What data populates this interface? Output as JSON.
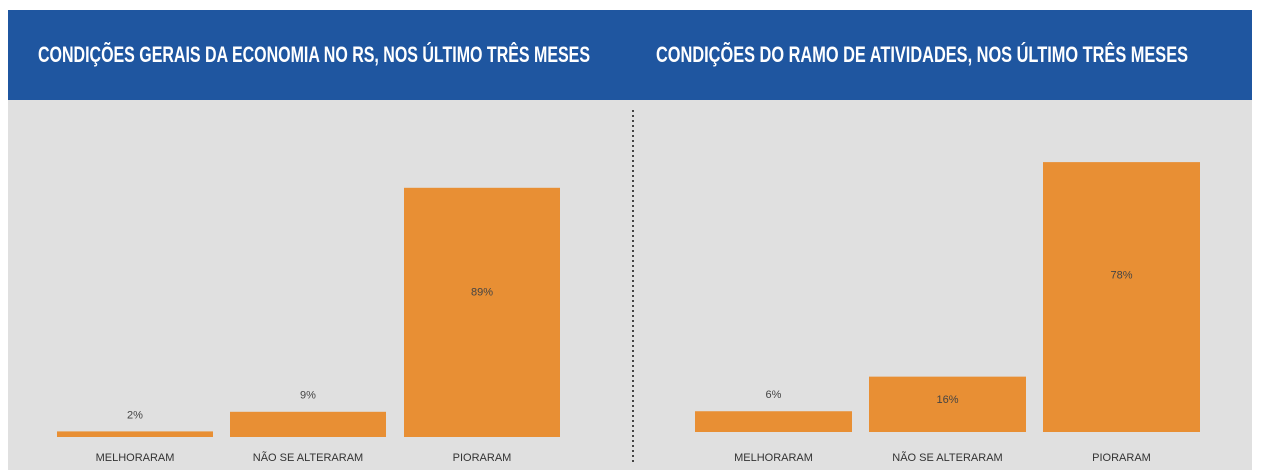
{
  "chart_data": [
    {
      "type": "bar",
      "title": "CONDIÇÕES GERAIS DA ECONOMIA NO RS, NOS ÚLTIMO TRÊS MESES",
      "categories": [
        "MELHORARAM",
        "NÃO SE ALTERARAM",
        "PIORARAM"
      ],
      "values": [
        2,
        9,
        89
      ],
      "value_labels": [
        "2%",
        "9%",
        "89%"
      ],
      "color": "#e88f34"
    },
    {
      "type": "bar",
      "title": "CONDIÇÕES DO RAMO DE ATIVIDADES, NOS ÚLTIMO TRÊS MESES",
      "categories": [
        "MELHORARAM",
        "NÃO SE ALTERARAM",
        "PIORARAM"
      ],
      "values": [
        6,
        16,
        78
      ],
      "value_labels": [
        "6%",
        "16%",
        "78%"
      ],
      "color": "#e88f34"
    }
  ]
}
